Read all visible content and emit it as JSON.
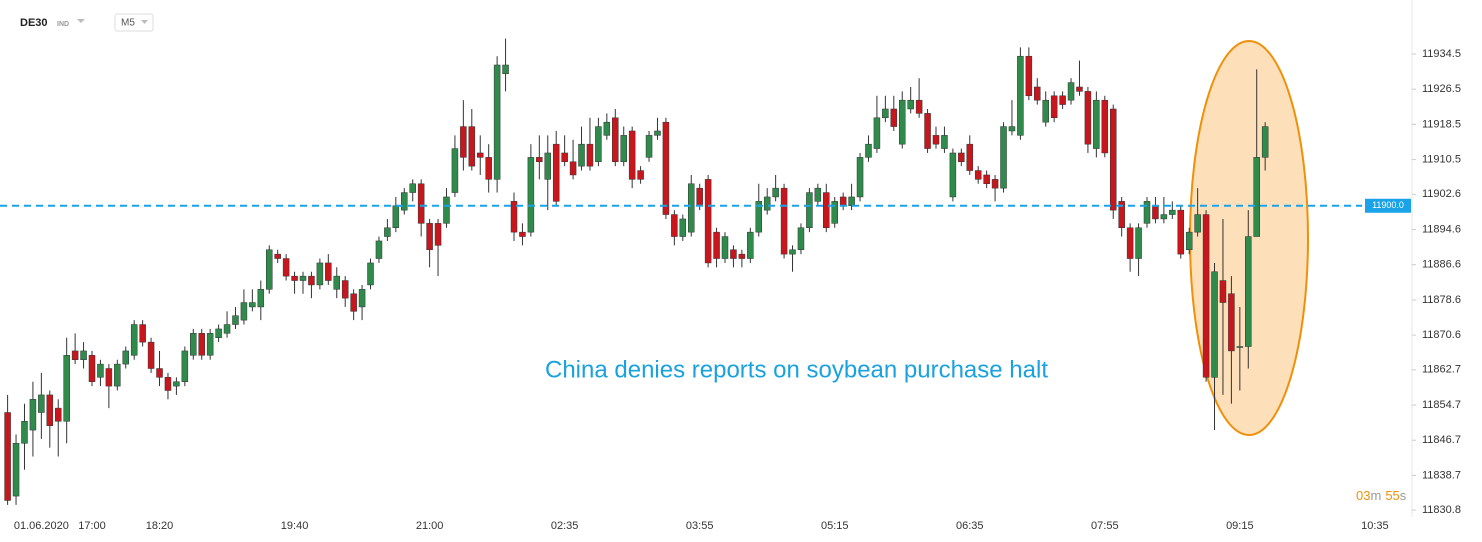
{
  "symbol": "DE30",
  "instrument_type": "IND",
  "timeframe": "M5",
  "chart_data": {
    "type": "candlestick",
    "annotation": "China denies reports on soybean purchase halt",
    "categories": [
      null,
      null,
      null,
      null,
      "01.06.2020",
      null,
      null,
      null,
      null,
      null,
      "17:00",
      null,
      null,
      null,
      null,
      null,
      null,
      null,
      "18:20",
      null,
      null,
      null,
      null,
      null,
      null,
      null,
      null,
      null,
      null,
      null,
      null,
      null,
      null,
      null,
      "19:40",
      null,
      null,
      null,
      null,
      null,
      null,
      null,
      null,
      null,
      null,
      null,
      null,
      null,
      null,
      null,
      "21:00",
      null,
      null,
      null,
      null,
      null,
      null,
      null,
      null,
      null,
      null,
      null,
      null,
      null,
      null,
      null,
      "02:35",
      null,
      null,
      null,
      null,
      null,
      null,
      null,
      null,
      null,
      null,
      null,
      null,
      null,
      null,
      null,
      "03:55",
      null,
      null,
      null,
      null,
      null,
      null,
      null,
      null,
      null,
      null,
      null,
      null,
      null,
      null,
      null,
      "05:15",
      null,
      null,
      null,
      null,
      null,
      null,
      null,
      null,
      null,
      null,
      null,
      null,
      null,
      null,
      null,
      "06:35",
      null,
      null,
      null,
      null,
      null,
      null,
      null,
      null,
      null,
      null,
      null,
      null,
      null,
      null,
      null,
      "07:55",
      null,
      null,
      null,
      null,
      null,
      null,
      null,
      null,
      null,
      null,
      null,
      null,
      null,
      null,
      null,
      "09:15",
      null,
      null,
      null,
      null,
      null,
      null,
      null,
      null,
      null,
      null,
      null,
      null,
      null,
      null,
      null,
      "10:35"
    ],
    "series": [
      {
        "up_color": "#2f8a4c",
        "down_color": "#c8161d",
        "open": [
          11853,
          11834,
          11846,
          11849,
          11853,
          11857,
          11854,
          11851,
          11867,
          11865,
          11866,
          11861,
          11863,
          11859,
          11864,
          11866,
          11873,
          11869,
          11863,
          11861,
          11859,
          11860,
          11866,
          11871,
          11866,
          11870,
          11871,
          11873,
          11874,
          11877,
          11877,
          11881,
          11889,
          11888,
          11884,
          11883,
          11884,
          11882,
          11887,
          11881,
          11883,
          11880,
          11877,
          11882,
          11888,
          11893,
          11895,
          11899,
          11903,
          11905,
          11896,
          11896,
          11896,
          11903,
          11918,
          11918,
          11912,
          11911,
          11906,
          11930,
          11901,
          11894,
          11894,
          11911,
          11906,
          11914,
          11912,
          11910,
          11909,
          11914,
          11910,
          11916,
          11920,
          11910,
          11917,
          11908,
          11911,
          11916,
          11919,
          11898,
          11893,
          11894,
          11904,
          11906,
          11894,
          11888,
          11890,
          11889,
          11888,
          11894,
          11899,
          11902,
          11904,
          11889,
          11890,
          11895,
          11901,
          11903,
          11896,
          11902,
          11900,
          11902,
          11911,
          11913,
          11920,
          11922,
          11914,
          11922,
          11924,
          11921,
          11916,
          11913,
          11902,
          11912,
          11914,
          11908,
          11907,
          11906,
          11904,
          11917,
          11916,
          11934,
          11927,
          11919,
          11925,
          11925,
          11924,
          11927,
          11926,
          11913,
          11924,
          11922,
          11901,
          11895,
          11888,
          11896,
          11900,
          11897,
          11898,
          11899,
          11890,
          11894,
          11898,
          11861,
          11883,
          11880,
          11868,
          11868,
          11893,
          11911,
          null,
          null,
          null,
          null,
          null,
          null,
          null,
          null,
          null,
          null,
          null,
          null,
          null
        ],
        "high": [
          11857,
          11848,
          11855,
          11860,
          11862,
          11858,
          11856,
          11870,
          11871,
          11869,
          11867,
          11865,
          11864,
          11865,
          11868,
          11874,
          11874,
          11870,
          11867,
          11862,
          11861,
          11868,
          11872,
          11872,
          11872,
          11873,
          11876,
          11877,
          11881,
          11881,
          11883,
          11891,
          11890,
          11889,
          11885,
          11885,
          11885,
          11888,
          11889,
          11886,
          11884,
          11881,
          11882,
          11888,
          11893,
          11897,
          11902,
          11904,
          11906,
          11906,
          11897,
          11897,
          11904,
          11916,
          11924,
          11922,
          11916,
          11914,
          11934,
          11938,
          11903,
          11896,
          11914,
          11916,
          11916,
          11917,
          11916,
          11915,
          11918,
          11920,
          11920,
          11921,
          11922,
          11918,
          11918,
          11909,
          11917,
          11920,
          11920,
          11899,
          11898,
          11907,
          11905,
          11907,
          11895,
          11894,
          11891,
          11890,
          11895,
          11905,
          11904,
          11907,
          11905,
          11891,
          11896,
          11904,
          11905,
          11905,
          11902,
          11903,
          11905,
          11912,
          11916,
          11925,
          11925,
          11925,
          11926,
          11927,
          11929,
          11922,
          11918,
          11918,
          11913,
          11913,
          11916,
          11909,
          11908,
          11907,
          11919,
          11924,
          11936,
          11936,
          11929,
          11926,
          11926,
          11926,
          11929,
          11933,
          11927,
          11926,
          11925,
          11923,
          11902,
          11896,
          11896,
          11902,
          11902,
          11902,
          11901,
          11900,
          11895,
          11904,
          11899,
          11887,
          11897,
          11884,
          11877,
          11899,
          11931,
          11919,
          null,
          null,
          null,
          null,
          null,
          null,
          null,
          null,
          null,
          null,
          null,
          null,
          null
        ],
        "low": [
          11832,
          11832,
          11840,
          11843,
          11847,
          11845,
          11843,
          11846,
          11864,
          11863,
          11859,
          11859,
          11854,
          11858,
          11863,
          11865,
          11868,
          11862,
          11859,
          11856,
          11857,
          11859,
          11865,
          11865,
          11865,
          11869,
          11870,
          11872,
          11873,
          11876,
          11874,
          11880,
          11887,
          11883,
          11880,
          11880,
          11879,
          11881,
          11882,
          11879,
          11877,
          11874,
          11874,
          11881,
          11887,
          11892,
          11894,
          11898,
          11901,
          11893,
          11886,
          11884,
          11895,
          11902,
          11908,
          11908,
          11907,
          11903,
          11903,
          11926,
          11892,
          11891,
          11893,
          11906,
          11899,
          11900,
          11909,
          11906,
          11908,
          11908,
          11909,
          11915,
          11909,
          11909,
          11904,
          11905,
          11910,
          11915,
          11897,
          11891,
          11892,
          11893,
          11899,
          11886,
          11886,
          11887,
          11886,
          11886,
          11887,
          11893,
          11898,
          11901,
          11888,
          11885,
          11889,
          11894,
          11900,
          11894,
          11895,
          11899,
          11899,
          11901,
          11910,
          11912,
          11919,
          11917,
          11913,
          11921,
          11920,
          11912,
          11913,
          11912,
          11901,
          11909,
          11907,
          11905,
          11904,
          11901,
          11903,
          11916,
          11915,
          11924,
          11923,
          11918,
          11919,
          11922,
          11923,
          11925,
          11912,
          11911,
          11911,
          11897,
          11893,
          11885,
          11884,
          11895,
          11896,
          11896,
          11897,
          11888,
          11889,
          11893,
          11860,
          11849,
          11857,
          11855,
          11858,
          11863,
          11893,
          11908,
          null,
          null,
          null,
          null,
          null,
          null,
          null,
          null,
          null,
          null,
          null,
          null,
          null
        ],
        "close": [
          11833,
          11846,
          11851,
          11856,
          11857,
          11850,
          11851,
          11866,
          11865,
          11867,
          11860,
          11864,
          11859,
          11864,
          11867,
          11873,
          11869,
          11863,
          11861,
          11858,
          11860,
          11867,
          11871,
          11866,
          11871,
          11872,
          11873,
          11875,
          11878,
          11878,
          11881,
          11890,
          11888,
          11884,
          11883,
          11884,
          11882,
          11887,
          11883,
          11884,
          11879,
          11876,
          11881,
          11887,
          11892,
          11895,
          11900,
          11903,
          11905,
          11896,
          11890,
          11891,
          11902,
          11913,
          11911,
          11909,
          11911,
          11906,
          11932,
          11932,
          11894,
          11893,
          11911,
          11910,
          11912,
          11901,
          11910,
          11907,
          11914,
          11909,
          11918,
          11919,
          11910,
          11916,
          11906,
          11906,
          11916,
          11917,
          11898,
          11893,
          11897,
          11905,
          11900,
          11887,
          11888,
          11893,
          11888,
          11888,
          11894,
          11901,
          11902,
          11904,
          11889,
          11890,
          11895,
          11903,
          11904,
          11895,
          11901,
          11900,
          11902,
          11911,
          11914,
          11920,
          11922,
          11918,
          11924,
          11924,
          11921,
          11913,
          11914,
          11916,
          11912,
          11910,
          11908,
          11906,
          11905,
          11904,
          11918,
          11918,
          11934,
          11925,
          11924,
          11924,
          11920,
          11923,
          11928,
          11926,
          11914,
          11924,
          11912,
          11899,
          11895,
          11888,
          11895,
          11901,
          11897,
          11898,
          11899,
          11889,
          11894,
          11898,
          11861,
          11885,
          11878,
          11867,
          11868,
          11893,
          11911,
          11918,
          null,
          null,
          null,
          null,
          null,
          null,
          null,
          null,
          null,
          null,
          null,
          null,
          null
        ]
      }
    ],
    "ylim": [
      11829.7,
      11944.5
    ],
    "yticks": [
      11934.5,
      11926.5,
      11918.5,
      11910.5,
      11902.6,
      11894.6,
      11886.6,
      11878.6,
      11870.6,
      11862.7,
      11854.7,
      11846.7,
      11838.7,
      11830.8
    ],
    "price_line": {
      "value": 11900,
      "label": "11900.0",
      "color": "#1aa3e8"
    },
    "countdown": {
      "minutes": "03",
      "minutes_unit": "m",
      "seconds": "55",
      "seconds_unit": "s"
    }
  }
}
